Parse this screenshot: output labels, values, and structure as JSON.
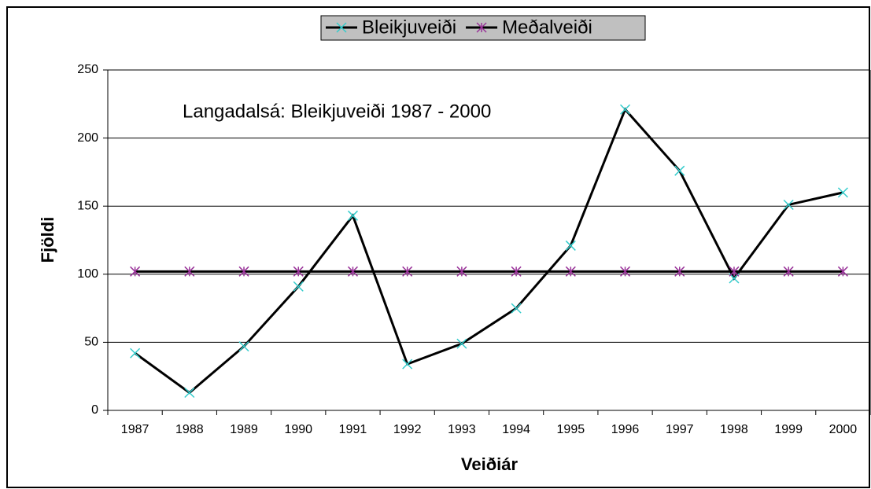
{
  "chart_data": {
    "type": "line",
    "title": "Langadalsá:  Bleikjuveiði 1987 - 2000",
    "x_label": "Veiðiár",
    "y_label": "Fjöldi",
    "categories": [
      "1987",
      "1988",
      "1989",
      "1990",
      "1991",
      "1992",
      "1993",
      "1994",
      "1995",
      "1996",
      "1997",
      "1998",
      "1999",
      "2000"
    ],
    "series": [
      {
        "name": "Bleikjuveiði",
        "color": "#000000",
        "marker_color": "#33cccc",
        "marker": "x",
        "values": [
          42,
          13,
          47,
          91,
          143,
          34,
          49,
          75,
          121,
          221,
          176,
          97,
          151,
          160
        ]
      },
      {
        "name": "Meðalveiði",
        "color": "#000000",
        "marker_color": "#993399",
        "marker": "asterisk",
        "values": [
          102,
          102,
          102,
          102,
          102,
          102,
          102,
          102,
          102,
          102,
          102,
          102,
          102,
          102
        ]
      }
    ],
    "ylim": [
      0,
      250
    ],
    "yticks": [
      0,
      50,
      100,
      150,
      200,
      250
    ],
    "grid": true,
    "legend": "top"
  }
}
